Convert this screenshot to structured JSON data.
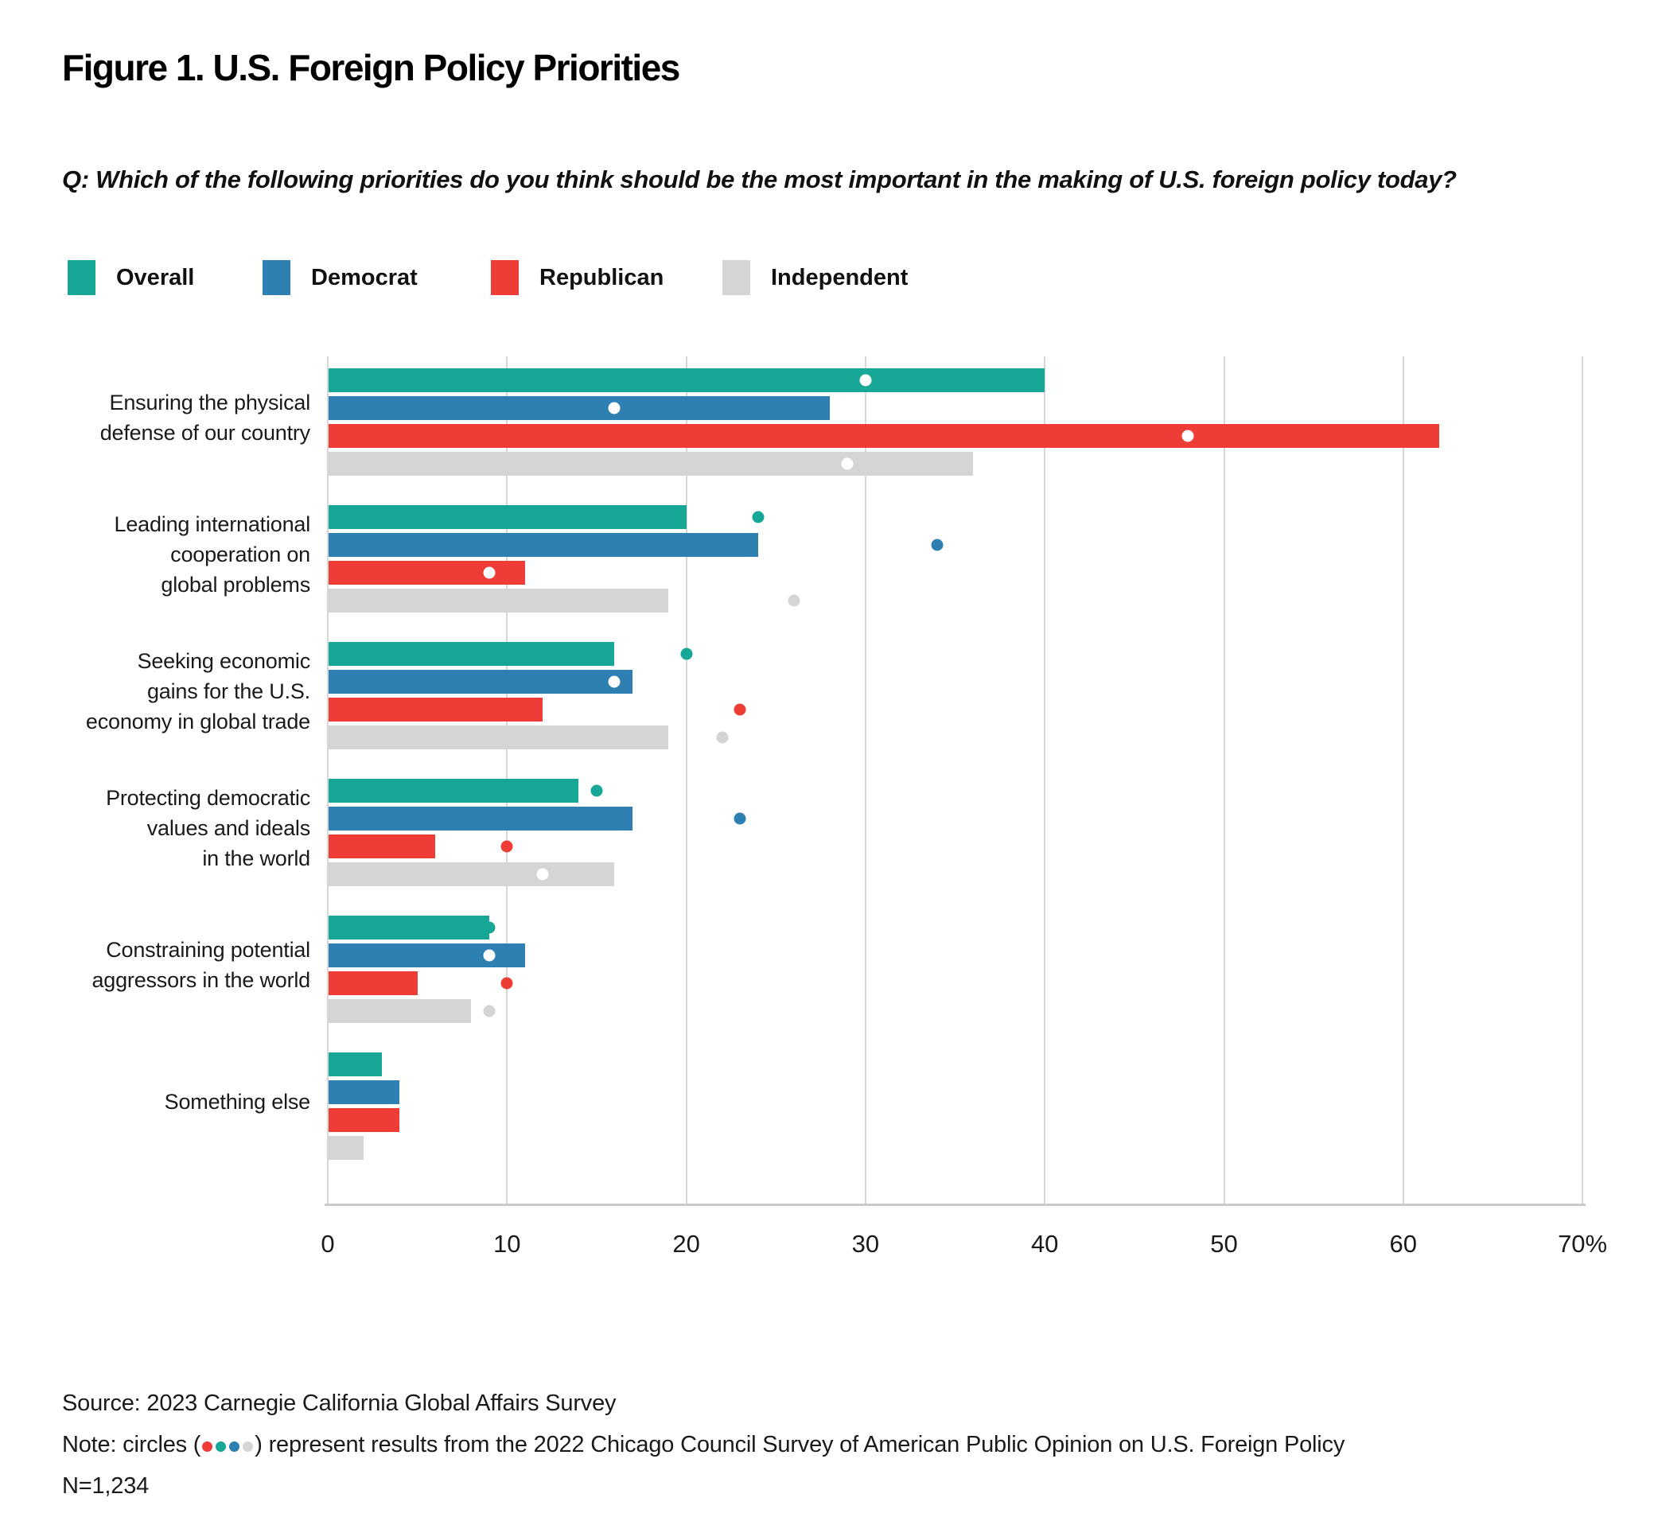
{
  "header": {
    "title": "Figure 1. U.S. Foreign Policy Priorities",
    "question": "Q: Which of the following priorities do you think should be the most important in the making of U.S. foreign policy today?"
  },
  "legend": [
    {
      "label": "Overall",
      "color": "#17a797"
    },
    {
      "label": "Democrat",
      "color": "#2f80b2"
    },
    {
      "label": "Republican",
      "color": "#ee3d36"
    },
    {
      "label": "Independent",
      "color": "#d3d5d6"
    }
  ],
  "chart_data": {
    "type": "bar",
    "orientation": "horizontal",
    "unit": "percent",
    "title": "Figure 1. U.S. Foreign Policy Priorities",
    "xlim": [
      0,
      70
    ],
    "x_tick_values": [
      0,
      10,
      20,
      30,
      40,
      50,
      60,
      70
    ],
    "x_tick_labels": [
      "0",
      "10",
      "20",
      "30",
      "40",
      "50",
      "60",
      "70%"
    ],
    "grid": true,
    "legend_position": "top",
    "categories": [
      {
        "label": "Ensuring the physical defense of our country",
        "label_lines": [
          "Ensuring the physical",
          "defense of our country"
        ]
      },
      {
        "label": "Leading international cooperation on global problems",
        "label_lines": [
          "Leading international",
          "cooperation on",
          "global problems"
        ]
      },
      {
        "label": "Seeking economic gains for the U.S. economy in global trade",
        "label_lines": [
          "Seeking economic",
          "gains for the U.S.",
          "economy in global trade"
        ]
      },
      {
        "label": "Protecting democratic values and ideals in the world",
        "label_lines": [
          "Protecting democratic",
          "values and ideals",
          "in the world"
        ]
      },
      {
        "label": "Constraining potential aggressors in the world",
        "label_lines": [
          "Constraining potential",
          "aggressors in the world"
        ]
      },
      {
        "label": "Something else",
        "label_lines": [
          "Something else"
        ]
      }
    ],
    "series": [
      {
        "name": "Overall",
        "color": "#17a797",
        "values": [
          40,
          20,
          16,
          14,
          9,
          3
        ],
        "dots_2022": [
          30,
          24,
          20,
          15,
          9,
          null
        ]
      },
      {
        "name": "Democrat",
        "color": "#2f80b2",
        "values": [
          28,
          24,
          17,
          17,
          11,
          4
        ],
        "dots_2022": [
          16,
          34,
          16,
          23,
          9,
          null
        ]
      },
      {
        "name": "Republican",
        "color": "#ee3d36",
        "values": [
          62,
          11,
          12,
          6,
          5,
          4
        ],
        "dots_2022": [
          48,
          9,
          23,
          10,
          10,
          null
        ]
      },
      {
        "name": "Independent",
        "color": "#d3d5d6",
        "values": [
          36,
          19,
          19,
          16,
          8,
          2
        ],
        "dots_2022": [
          29,
          26,
          22,
          12,
          9,
          null
        ]
      }
    ],
    "dot_meaning": "circles represent results from the 2022 Chicago Council Survey; circles are white when inside the bar and series-colored when beyond the bar end",
    "dot_white_color": "#ffffff"
  },
  "footer": {
    "source": "Source: 2023 Carnegie California Global Affairs Survey",
    "note_prefix": "Note: circles (",
    "note_dot_colors": [
      "#ee3d36",
      "#17a797",
      "#2f80b2",
      "#d3d5d6"
    ],
    "note_suffix": ") represent results from the 2022 Chicago Council Survey of American Public Opinion on U.S. Foreign Policy",
    "sample_size": "N=1,234"
  },
  "colors": {
    "background": "#ffffff",
    "gridline": "#d7d7d7",
    "axis_line": "#c9cacb",
    "text": "#1a1a1a"
  }
}
